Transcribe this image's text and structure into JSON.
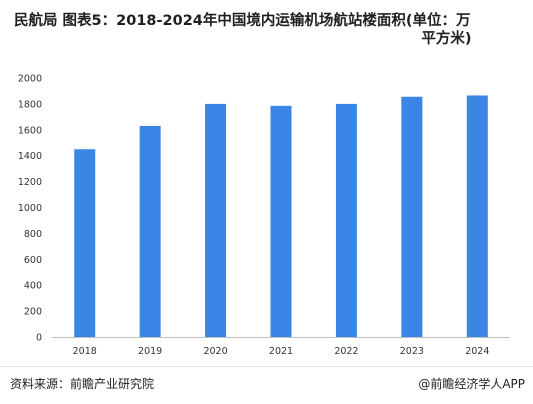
{
  "header": {
    "title_line1": "民航局 图表5：2018-2024年中国境内运输机场航站楼面积(单位：万",
    "title_line2": "平方米)"
  },
  "footer": {
    "source": "资料来源：前瞻产业研究院",
    "brand": "@前瞻经济学人APP"
  },
  "chart_data": {
    "type": "bar",
    "categories": [
      "2018",
      "2019",
      "2020",
      "2021",
      "2022",
      "2023",
      "2024"
    ],
    "values": [
      1450,
      1630,
      1800,
      1785,
      1800,
      1855,
      1865
    ],
    "ylim": [
      0,
      2000
    ],
    "yticks": [
      0,
      200,
      400,
      600,
      800,
      1000,
      1200,
      1400,
      1600,
      1800,
      2000
    ],
    "grid": false,
    "bar_color": "#3a85e5",
    "xlabel": "",
    "ylabel": ""
  }
}
